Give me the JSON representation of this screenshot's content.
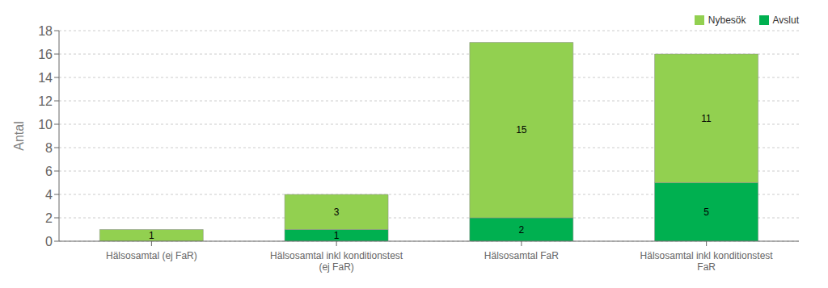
{
  "chart_data": {
    "type": "bar",
    "categories": [
      "Hälsosamtal (ej FaR)",
      "Hälsosamtal inkl konditionstest\n(ej FaR)",
      "Hälsosamtal FaR",
      "Hälsosamtal inkl konditionstest\nFaR"
    ],
    "series": [
      {
        "name": "Avslut",
        "color": "#00b050",
        "values": [
          0,
          1,
          2,
          5
        ]
      },
      {
        "name": "Nybesök",
        "color": "#92d050",
        "values": [
          1,
          3,
          15,
          11
        ]
      }
    ],
    "ylabel": "Antal",
    "ylim": [
      0,
      18
    ],
    "yticks": [
      0,
      2,
      4,
      6,
      8,
      10,
      12,
      14,
      16,
      18
    ],
    "grid": true,
    "legend": "upper right",
    "stacked": true,
    "data_labels": true
  }
}
